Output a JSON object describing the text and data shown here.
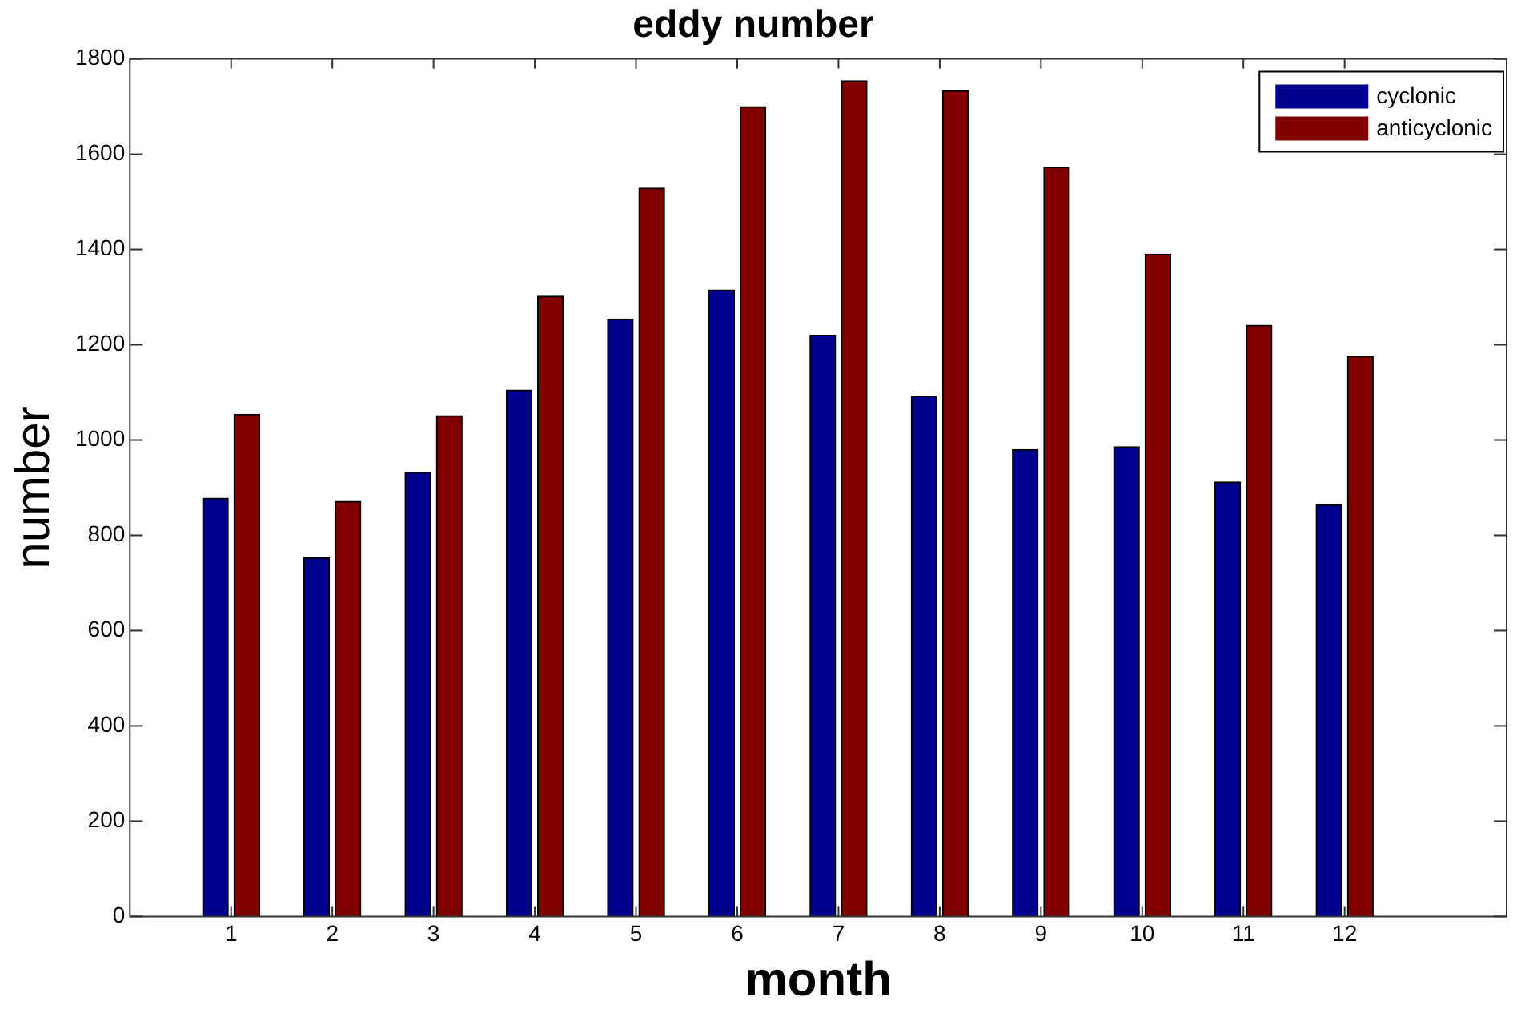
{
  "chart_data": {
    "type": "bar",
    "title": "eddy number",
    "xlabel": "month",
    "ylabel": "number",
    "x": [
      1,
      2,
      3,
      4,
      5,
      6,
      7,
      8,
      9,
      10,
      11,
      12
    ],
    "xlim": [
      0,
      13.6
    ],
    "xticks": [
      1,
      2,
      3,
      4,
      5,
      6,
      7,
      8,
      9,
      10,
      11,
      12
    ],
    "ylim": [
      0,
      1800
    ],
    "yticks": [
      0,
      200,
      400,
      600,
      800,
      1000,
      1200,
      1400,
      1600,
      1800
    ],
    "series": [
      {
        "name": "cyclonic",
        "color": "#00008f",
        "values": [
          878,
          753,
          932,
          1105,
          1254,
          1315,
          1220,
          1092,
          980,
          986,
          912,
          864
        ]
      },
      {
        "name": "anticyclonic",
        "color": "#800000",
        "values": [
          1054,
          871,
          1051,
          1302,
          1529,
          1700,
          1754,
          1733,
          1573,
          1390,
          1241,
          1176
        ]
      }
    ],
    "grid": false,
    "legend": "top right"
  }
}
